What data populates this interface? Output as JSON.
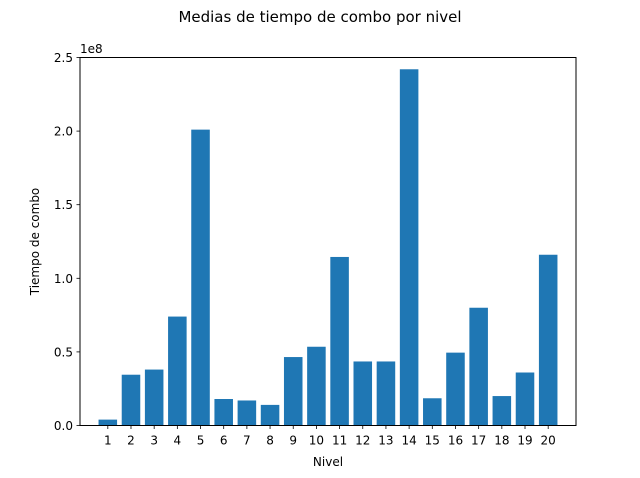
{
  "chart_data": {
    "type": "bar",
    "title": "Medias de tiempo de combo por nivel",
    "xlabel": "Nivel",
    "ylabel": "Tiempo de combo",
    "y_multiplier_label": "1e8",
    "categories": [
      "1",
      "2",
      "3",
      "4",
      "5",
      "6",
      "7",
      "8",
      "9",
      "10",
      "11",
      "12",
      "13",
      "14",
      "15",
      "16",
      "17",
      "18",
      "19",
      "20"
    ],
    "values": [
      4000000,
      34500000,
      38000000,
      74000000,
      201000000,
      18000000,
      17000000,
      14000000,
      46500000,
      53500000,
      114500000,
      43500000,
      43500000,
      242000000,
      18500000,
      49500000,
      80000000,
      20000000,
      36000000,
      116000000
    ],
    "ylim": [
      0,
      250000000
    ],
    "yticks": [
      0,
      50000000,
      100000000,
      150000000,
      200000000,
      250000000
    ],
    "ytick_labels": [
      "0.0",
      "0.5",
      "1.0",
      "1.5",
      "2.0",
      "2.5"
    ],
    "grid": false,
    "bar_color": "#1f77b4"
  }
}
